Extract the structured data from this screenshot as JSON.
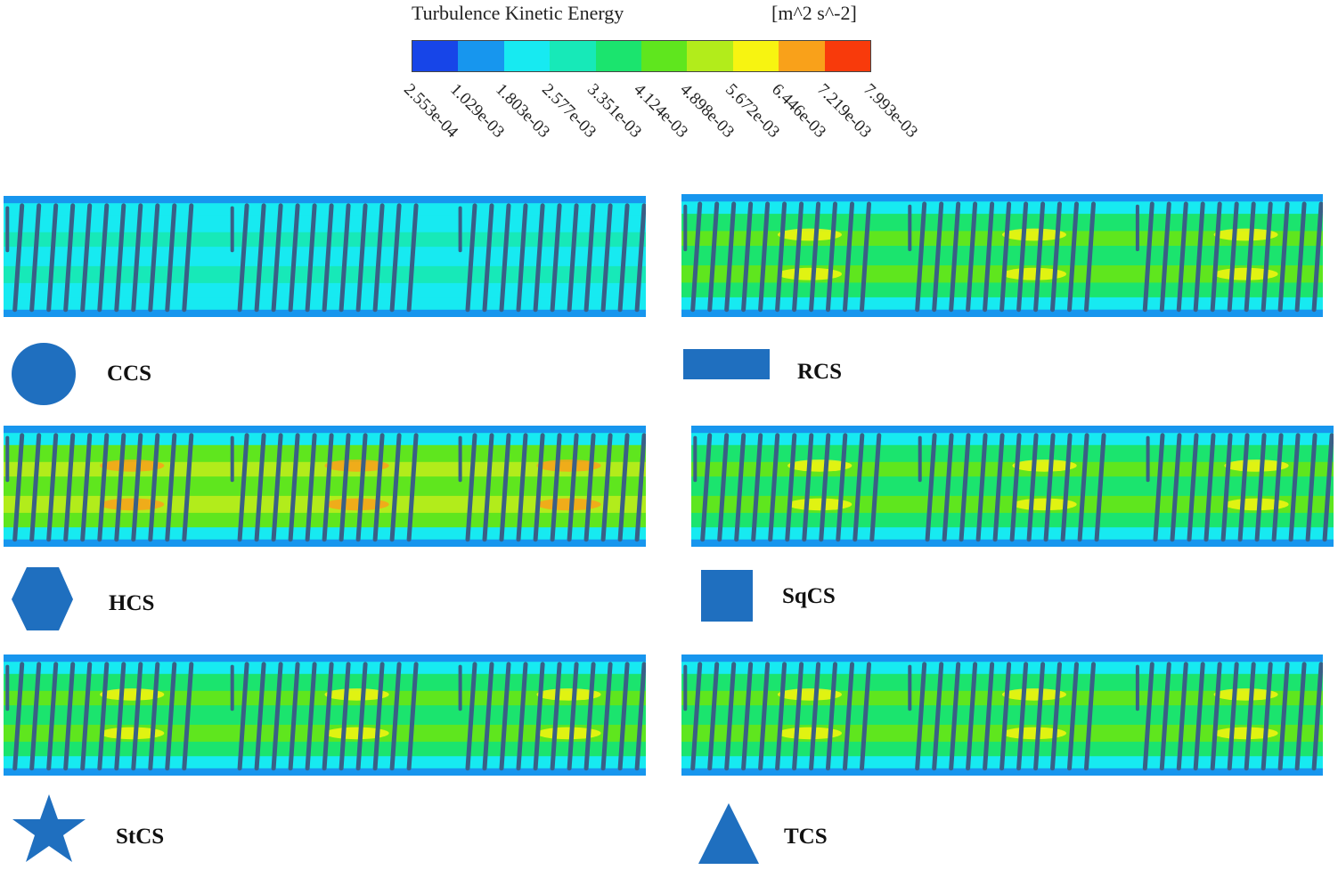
{
  "legend": {
    "title": "Turbulence Kinetic Energy",
    "unit": "[m^2 s^-2]",
    "colors": [
      "#1745e8",
      "#1796ee",
      "#17eaf1",
      "#17e9b8",
      "#1be46e",
      "#5fe61e",
      "#b2ec1b",
      "#f7f411",
      "#f9a11a",
      "#f83a0b"
    ],
    "ticks": [
      "2.553e-04",
      "1.029e-03",
      "1.803e-03",
      "2.577e-03",
      "3.351e-03",
      "4.124e-03",
      "4.898e-03",
      "5.672e-03",
      "6.446e-03",
      "7.219e-03",
      "7.993e-03"
    ]
  },
  "panels": [
    {
      "label": "CCS",
      "shape": "circle-icon",
      "level": 0.15
    },
    {
      "label": "RCS",
      "shape": "rectangle-icon",
      "level": 0.55
    },
    {
      "label": "HCS",
      "shape": "hexagon-icon",
      "level": 0.75
    },
    {
      "label": "SqCS",
      "shape": "square-icon",
      "level": 0.6
    },
    {
      "label": "StCS",
      "shape": "star-icon",
      "level": 0.65
    },
    {
      "label": "TCS",
      "shape": "triangle-icon",
      "level": 0.5
    }
  ],
  "colors": {
    "shape_fill": "#1f6fbf",
    "coil": "#3a5f86",
    "wall": "#2bb5e8"
  }
}
